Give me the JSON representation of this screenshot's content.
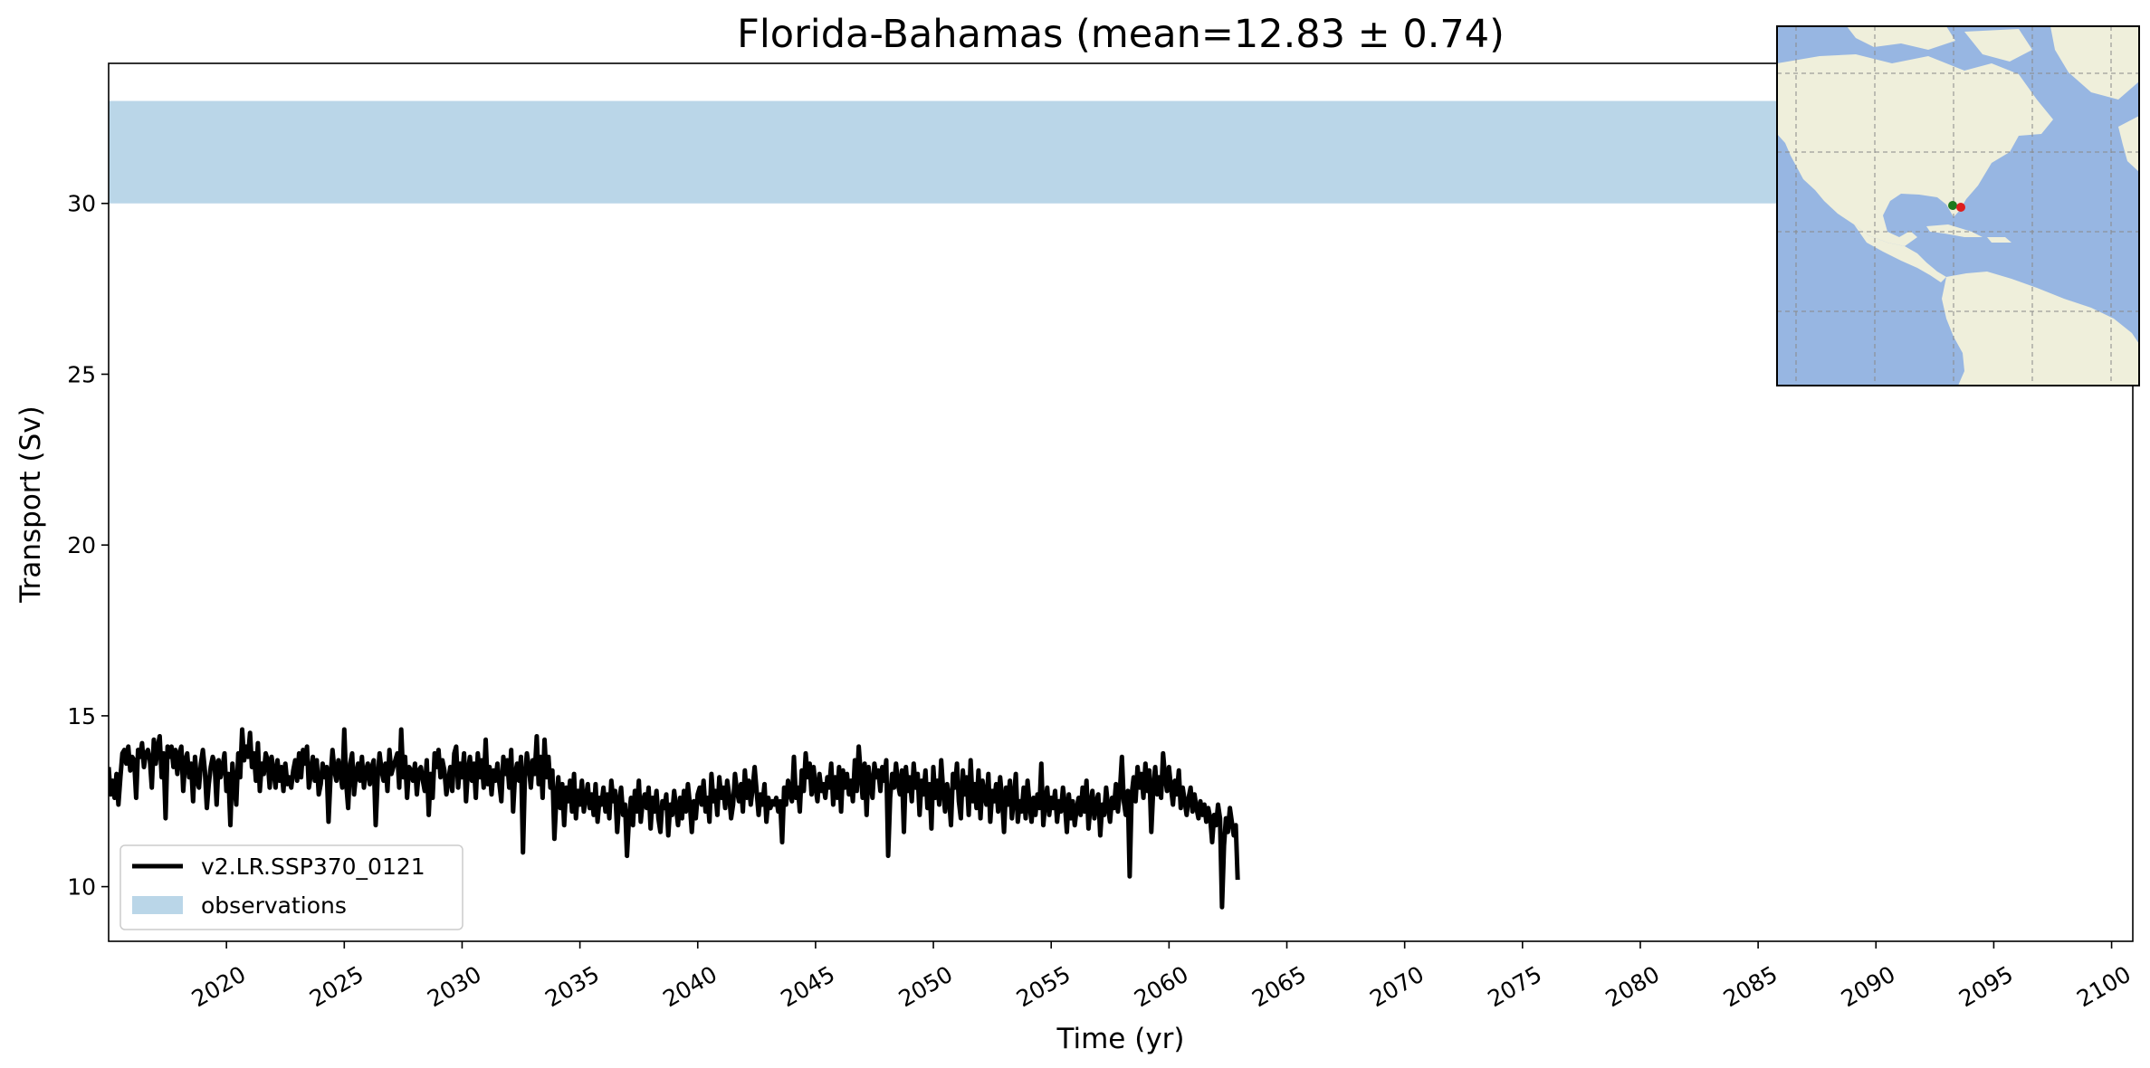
{
  "chart_data": {
    "type": "line",
    "title": "Florida-Bahamas (mean=12.83 ± 0.74)",
    "xlabel": "Time (yr)",
    "ylabel": "Transport (Sv)",
    "xlim": [
      2015.0,
      2100.9
    ],
    "ylim": [
      8.4,
      34.1
    ],
    "x_ticks": [
      2020,
      2025,
      2030,
      2035,
      2040,
      2045,
      2050,
      2055,
      2060,
      2065,
      2070,
      2075,
      2080,
      2085,
      2090,
      2095,
      2100
    ],
    "y_ticks": [
      10,
      15,
      20,
      25,
      30
    ],
    "grid": false,
    "legend_position": "lower-left",
    "series": [
      {
        "name": "v2.LR.SSP370_0121",
        "color": "#000000",
        "x_start": 2015.0,
        "x_step": 0.08333,
        "values": [
          13.5,
          12.7,
          13.1,
          12.6,
          13.3,
          12.4,
          13.2,
          13.9,
          14.0,
          13.6,
          14.1,
          13.4,
          13.8,
          13.7,
          12.6,
          14.0,
          13.8,
          14.2,
          13.5,
          13.9,
          14.0,
          13.7,
          12.9,
          14.3,
          13.6,
          14.1,
          14.4,
          13.2,
          13.9,
          12.0,
          14.1,
          13.8,
          14.1,
          13.5,
          14.0,
          13.3,
          13.9,
          14.1,
          12.8,
          13.7,
          13.9,
          13.2,
          13.6,
          12.5,
          13.8,
          13.1,
          12.9,
          13.6,
          14.0,
          13.4,
          12.3,
          13.0,
          13.5,
          13.8,
          13.6,
          12.4,
          13.7,
          13.2,
          13.5,
          13.9,
          12.8,
          13.3,
          11.8,
          13.6,
          13.0,
          12.4,
          13.9,
          13.2,
          14.6,
          13.7,
          14.1,
          13.8,
          14.5,
          13.5,
          13.9,
          13.1,
          14.2,
          12.8,
          13.6,
          13.3,
          13.9,
          13.7,
          12.9,
          13.8,
          13.4,
          12.9,
          13.7,
          13.1,
          13.5,
          12.8,
          13.6,
          13.0,
          13.2,
          12.9,
          13.4,
          13.7,
          13.1,
          13.9,
          13.2,
          14.0,
          13.6,
          14.1,
          12.9,
          13.3,
          13.8,
          13.1,
          13.7,
          12.7,
          13.0,
          13.6,
          13.2,
          13.5,
          11.9,
          13.2,
          14.0,
          13.4,
          13.1,
          13.7,
          13.3,
          12.9,
          14.6,
          13.0,
          12.3,
          13.6,
          13.9,
          12.7,
          13.3,
          13.6,
          13.1,
          13.8,
          12.9,
          13.4,
          13.6,
          13.0,
          13.5,
          13.7,
          11.8,
          13.2,
          13.9,
          13.4,
          13.1,
          13.6,
          12.8,
          14.0,
          13.3,
          13.5,
          13.7,
          13.9,
          12.9,
          14.6,
          13.2,
          13.8,
          12.6,
          13.5,
          13.4,
          13.1,
          13.6,
          12.7,
          13.4,
          13.5,
          13.1,
          12.8,
          13.7,
          12.1,
          13.3,
          12.6,
          13.9,
          13.5,
          14.0,
          13.2,
          13.7,
          13.4,
          12.7,
          13.1,
          13.5,
          12.8,
          13.9,
          14.1,
          12.9,
          13.6,
          13.2,
          13.9,
          12.5,
          13.4,
          13.8,
          13.1,
          13.6,
          12.6,
          13.9,
          13.2,
          13.7,
          12.9,
          14.3,
          13.0,
          13.5,
          12.7,
          13.4,
          13.1,
          13.6,
          13.0,
          12.5,
          13.8,
          13.3,
          13.7,
          12.9,
          14.0,
          12.2,
          13.3,
          13.6,
          13.1,
          13.8,
          11.0,
          13.2,
          13.9,
          13.5,
          12.9,
          13.7,
          13.3,
          14.4,
          13.0,
          13.8,
          12.6,
          14.3,
          13.2,
          13.8,
          12.9,
          13.4,
          11.4,
          12.6,
          13.2,
          12.3,
          13.0,
          11.8,
          12.9,
          12.5,
          13.1,
          12.2,
          13.3,
          12.0,
          12.8,
          12.4,
          13.1,
          12.2,
          12.6,
          13.0,
          12.3,
          12.7,
          12.1,
          13.0,
          11.9,
          12.6,
          12.4,
          12.9,
          12.2,
          12.7,
          12.0,
          13.1,
          12.5,
          12.8,
          11.6,
          12.5,
          12.9,
          12.1,
          12.4,
          10.9,
          12.0,
          12.6,
          11.8,
          12.8,
          12.2,
          13.1,
          11.9,
          12.5,
          12.7,
          12.3,
          12.9,
          11.7,
          12.6,
          12.2,
          12.8,
          12.0,
          11.6,
          12.5,
          12.3,
          12.7,
          11.5,
          12.4,
          12.1,
          12.8,
          12.3,
          11.8,
          12.6,
          12.0,
          12.8,
          12.2,
          13.0,
          12.4,
          11.6,
          12.5,
          12.0,
          12.7,
          12.9,
          12.4,
          13.1,
          12.2,
          12.6,
          11.9,
          13.3,
          12.5,
          12.8,
          12.1,
          13.2,
          12.6,
          12.9,
          12.3,
          13.1,
          12.7,
          12.0,
          12.4,
          13.3,
          12.8,
          12.5,
          13.0,
          12.2,
          13.4,
          12.6,
          13.1,
          12.4,
          12.9,
          13.5,
          12.8,
          12.1,
          12.7,
          12.4,
          13.0,
          11.9,
          12.6,
          12.3,
          12.5,
          12.4,
          12.6,
          12.2,
          12.5,
          11.3,
          12.9,
          12.4,
          13.1,
          12.7,
          12.5,
          13.8,
          12.6,
          12.9,
          12.2,
          13.4,
          12.8,
          13.9,
          13.2,
          13.6,
          12.7,
          13.5,
          12.9,
          12.5,
          13.3,
          12.8,
          13.0,
          12.6,
          13.2,
          12.9,
          13.6,
          12.4,
          13.2,
          12.6,
          13.5,
          12.2,
          13.4,
          12.9,
          13.3,
          12.7,
          13.1,
          12.5,
          13.7,
          12.8,
          14.1,
          13.3,
          12.6,
          13.6,
          12.1,
          13.5,
          13.0,
          12.6,
          13.6,
          13.2,
          13.4,
          12.8,
          13.5,
          13.1,
          13.7,
          10.9,
          12.6,
          13.3,
          12.9,
          13.6,
          13.0,
          12.7,
          13.4,
          11.6,
          13.5,
          12.8,
          13.2,
          12.5,
          13.6,
          12.9,
          13.3,
          12.1,
          13.1,
          12.7,
          13.4,
          12.3,
          13.0,
          11.7,
          13.5,
          12.6,
          13.1,
          12.4,
          13.7,
          12.8,
          12.2,
          13.0,
          12.6,
          11.8,
          13.3,
          12.9,
          13.6,
          12.5,
          12.0,
          13.4,
          12.7,
          13.2,
          12.1,
          13.7,
          12.5,
          13.0,
          12.3,
          13.4,
          12.0,
          13.1,
          12.7,
          12.4,
          13.3,
          11.9,
          12.8,
          12.5,
          13.0,
          12.2,
          13.2,
          12.6,
          11.6,
          12.9,
          12.4,
          13.1,
          12.0,
          12.6,
          13.3,
          11.9,
          12.5,
          12.2,
          12.9,
          12.0,
          13.1,
          12.4,
          11.9,
          12.6,
          12.1,
          12.7,
          12.3,
          13.6,
          11.8,
          12.5,
          12.9,
          12.1,
          12.6,
          12.3,
          12.8,
          11.9,
          12.5,
          12.2,
          12.9,
          12.4,
          11.6,
          12.7,
          12.0,
          12.5,
          11.8,
          12.3,
          12.6,
          12.1,
          12.9,
          12.2,
          13.1,
          11.7,
          12.4,
          12.8,
          12.0,
          12.5,
          12.7,
          11.5,
          12.4,
          12.1,
          12.9,
          12.3,
          11.9,
          12.6,
          12.3,
          13.0,
          12.2,
          12.8,
          13.8,
          12.5,
          12.1,
          12.8,
          10.3,
          12.7,
          13.2,
          12.5,
          13.5,
          12.9,
          13.3,
          12.6,
          13.6,
          12.8,
          13.4,
          11.6,
          12.9,
          13.5,
          12.7,
          13.2,
          12.6,
          13.9,
          13.2,
          12.8,
          13.5,
          12.9,
          12.4,
          13.1,
          12.7,
          13.4,
          12.3,
          12.9,
          12.5,
          12.1,
          12.6,
          12.9,
          12.2,
          12.7,
          12.3,
          12.0,
          12.5,
          12.1,
          12.4,
          11.9,
          12.3,
          12.0,
          11.3,
          12.1,
          11.8,
          12.4,
          12.0,
          9.4,
          11.2,
          12.0,
          11.6,
          12.3,
          11.9,
          11.5,
          11.8,
          10.2
        ]
      },
      {
        "name": "observations",
        "type": "band",
        "color": "#bad6e8",
        "y_range": [
          30.0,
          33.0
        ]
      }
    ]
  },
  "inset_map": {
    "description_icon": "globe-map-icon",
    "colors": {
      "ocean": "#97b6e2",
      "land": "#efefdb",
      "section_start": "#1e7a1e",
      "section_end": "#dd1e1e"
    }
  }
}
